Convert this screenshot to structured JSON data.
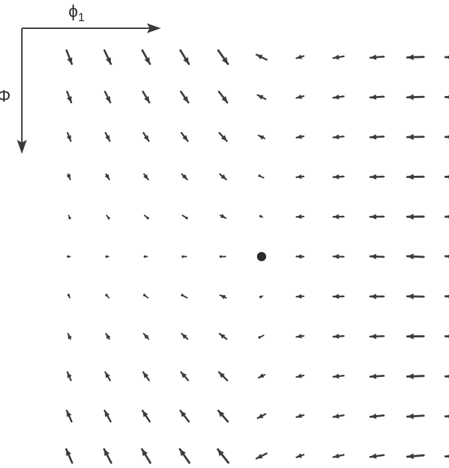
{
  "figure": {
    "x_axis_label": "ϕ",
    "x_axis_subscript": "1",
    "y_axis_label": "Φ",
    "colors": {
      "axis": "#3a3a3a",
      "vector": "#3c3c3c",
      "center_dot": "#2b2b2b"
    },
    "center_marker": "filled-circle",
    "grid": {
      "columns": 11,
      "rows": 11
    }
  }
}
